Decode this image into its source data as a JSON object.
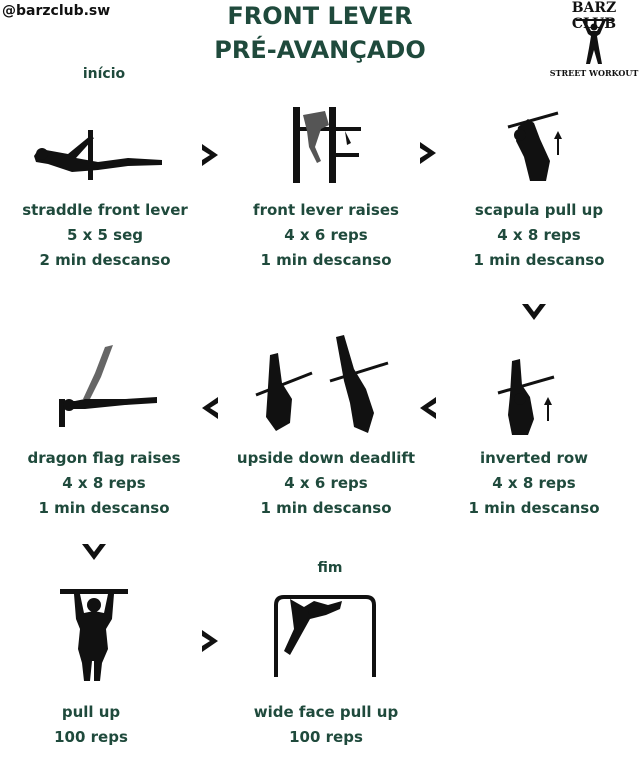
{
  "handle": "@barzclub.sw",
  "title_line1": "FRONT LEVER",
  "title_line2": "PRÉ-AVANÇADO",
  "logo": {
    "top": "BARZ CLUB",
    "bottom": "STREET WORKOUT"
  },
  "start_label": "início",
  "end_label": "fim",
  "exercises": [
    {
      "name": "straddle front lever",
      "sets": "5 x 5 seg",
      "rest": "2 min descanso",
      "icon": "straddle-front-lever-icon"
    },
    {
      "name": "front lever raises",
      "sets": "4 x 6 reps",
      "rest": "1 min descanso",
      "icon": "front-lever-raises-icon"
    },
    {
      "name": "scapula pull up",
      "sets": "4 x 8 reps",
      "rest": "1 min descanso",
      "icon": "scapula-pull-up-icon"
    },
    {
      "name": "inverted row",
      "sets": "4 x 8 reps",
      "rest": "1 min descanso",
      "icon": "inverted-row-icon"
    },
    {
      "name": "upside down deadlift",
      "sets": "4 x 6 reps",
      "rest": "1 min descanso",
      "icon": "upside-down-deadlift-icon"
    },
    {
      "name": "dragon flag raises",
      "sets": "4 x 8 reps",
      "rest": "1 min descanso",
      "icon": "dragon-flag-raises-icon"
    },
    {
      "name": "pull up",
      "sets": "100 reps",
      "rest": "",
      "icon": "pull-up-icon"
    },
    {
      "name": "wide face pull up",
      "sets": "100 reps",
      "rest": "",
      "icon": "wide-face-pull-up-icon"
    }
  ],
  "colors": {
    "text": "#1f4a3c",
    "figure": "#111111"
  }
}
